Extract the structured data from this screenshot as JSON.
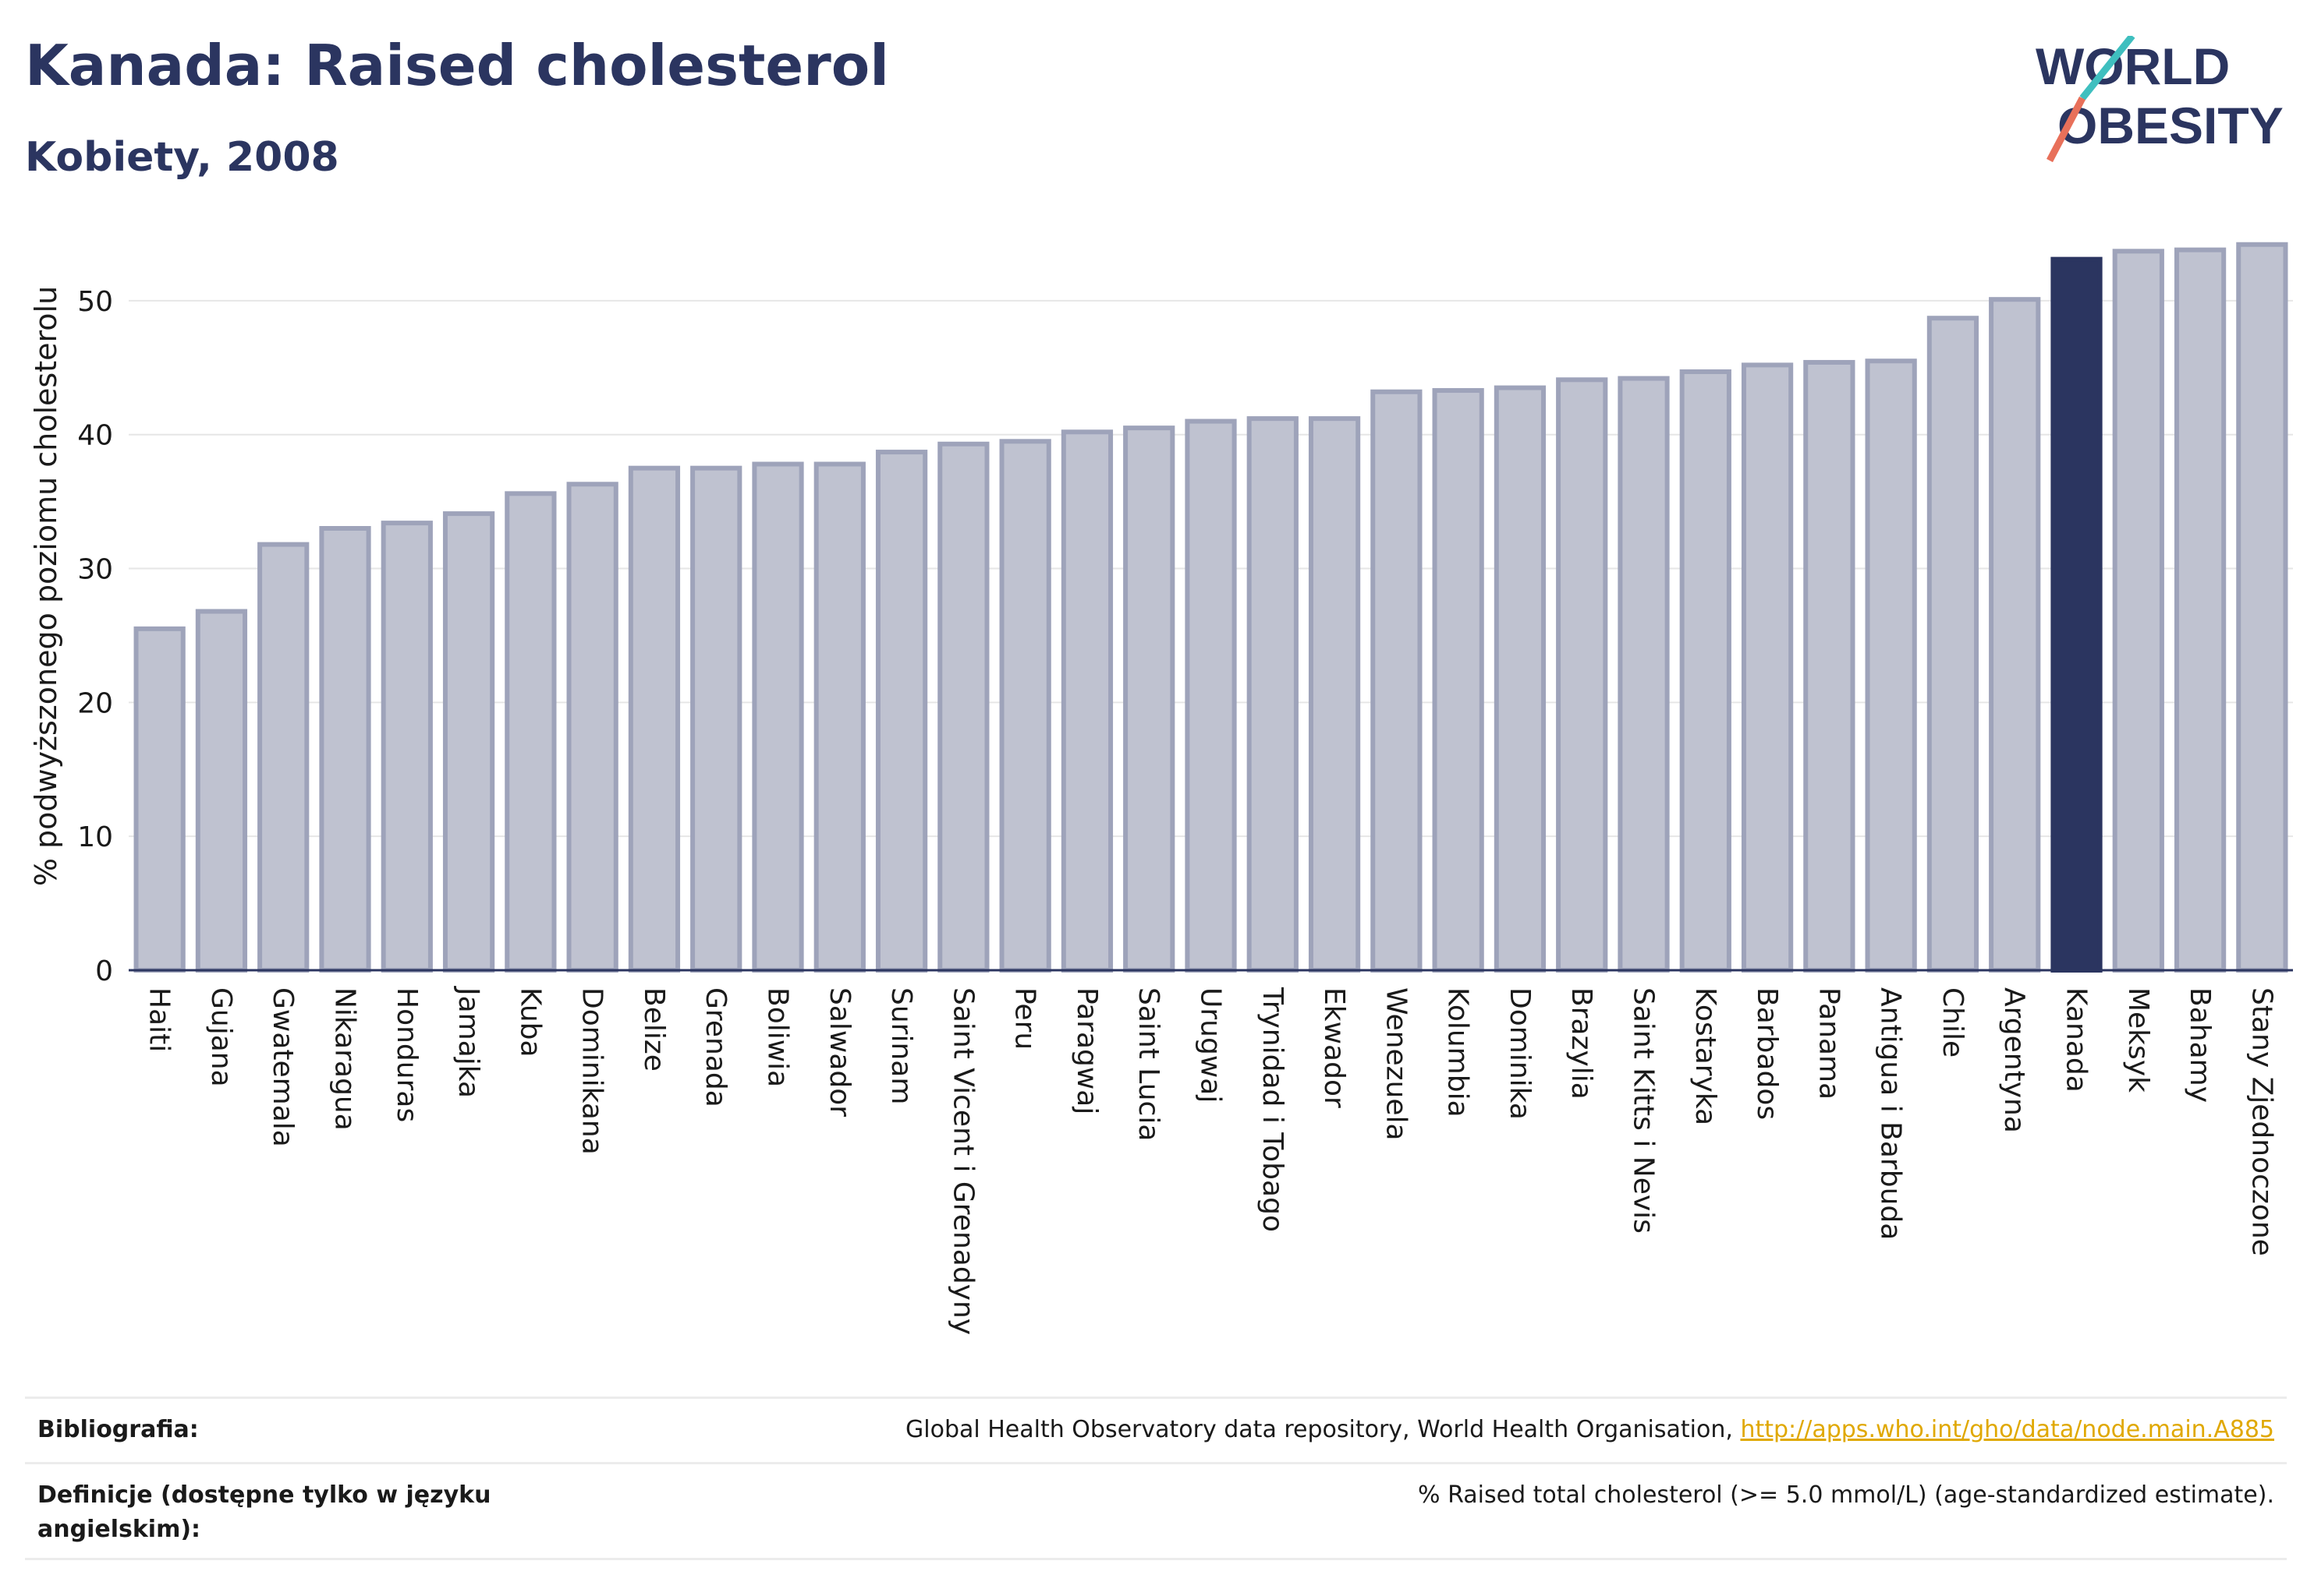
{
  "header": {
    "title": "Kanada: Raised cholesterol",
    "subtitle": "Kobiety, 2008",
    "logo_line1": "WORLD",
    "logo_line2": "OBESITY"
  },
  "chart_data": {
    "type": "bar",
    "ylabel": "% podwyższonego poziomu cholesterolu",
    "ylim": [
      0,
      55
    ],
    "yticks": [
      0,
      10,
      20,
      30,
      40,
      50
    ],
    "grid": true,
    "highlight": "Kanada",
    "colors": {
      "bar": "#bfc2d0",
      "bar_edge": "#9ea3ba",
      "highlight": "#2b3560",
      "grid": "#e6e6e6",
      "axis": "#2b3560"
    },
    "categories": [
      "Haiti",
      "Gujana",
      "Gwatemala",
      "Nikaragua",
      "Honduras",
      "Jamajka",
      "Kuba",
      "Dominikana",
      "Belize",
      "Grenada",
      "Boliwia",
      "Salwador",
      "Surinam",
      "Saint Vicent i Grenadyny",
      "Peru",
      "Paragwaj",
      "Saint Lucia",
      "Urugwaj",
      "Trynidad i Tobago",
      "Ekwador",
      "Wenezuela",
      "Kolumbia",
      "Dominika",
      "Brazylia",
      "Saint Kitts i Nevis",
      "Kostaryka",
      "Barbados",
      "Panama",
      "Antigua i Barbuda",
      "Chile",
      "Argentyna",
      "Kanada",
      "Meksyk",
      "Bahamy",
      "Stany Zjednoczone"
    ],
    "values": [
      25.5,
      26.8,
      31.8,
      33.0,
      33.4,
      34.1,
      35.6,
      36.3,
      37.5,
      37.5,
      37.8,
      37.8,
      38.7,
      39.3,
      39.5,
      40.2,
      40.5,
      41.0,
      41.2,
      41.2,
      43.2,
      43.3,
      43.5,
      44.1,
      44.2,
      44.7,
      45.2,
      45.4,
      45.5,
      48.7,
      50.1,
      53.1,
      53.7,
      53.8,
      54.2
    ]
  },
  "footer": {
    "bibliography_label": "Bibliografia:",
    "bibliography_text": "Global Health Observatory data repository, World Health Organisation, ",
    "bibliography_link": "http://apps.who.int/gho/data/node.main.A885",
    "definitions_label": "Definicje (dostępne tylko w języku angielskim):",
    "definitions_text": "% Raised total cholesterol (>= 5.0 mmol/L) (age-standardized estimate)."
  }
}
